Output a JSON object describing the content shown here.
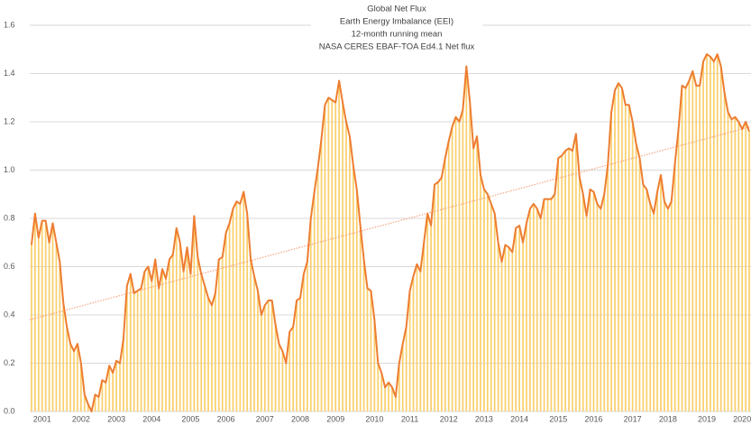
{
  "chart_data": {
    "type": "line",
    "title": [
      "Global Net Flux",
      "Earth Energy Imbalance (EEI)",
      "12-month running mean",
      "NASA CERES EBAF-TOA Ed4.1 Net flux"
    ],
    "categories": [
      null,
      null,
      null,
      "2001",
      null,
      null,
      null,
      null,
      null,
      null,
      null,
      null,
      null,
      null,
      "2002",
      null,
      null,
      null,
      null,
      null,
      null,
      null,
      null,
      null,
      "2003",
      null,
      null,
      null,
      null,
      null,
      null,
      null,
      null,
      null,
      "2004",
      null,
      null,
      null,
      null,
      null,
      null,
      null,
      null,
      null,
      null,
      "2005",
      null,
      null,
      null,
      null,
      null,
      null,
      null,
      null,
      null,
      "2006",
      null,
      null,
      null,
      null,
      null,
      null,
      null,
      null,
      null,
      null,
      "2007",
      null,
      null,
      null,
      null,
      null,
      null,
      null,
      null,
      null,
      "2008",
      null,
      null,
      null,
      null,
      null,
      null,
      null,
      null,
      null,
      "2009",
      null,
      null,
      null,
      null,
      null,
      null,
      null,
      null,
      null,
      null,
      "2010",
      null,
      null,
      null,
      null,
      null,
      null,
      null,
      null,
      null,
      "2011",
      null,
      null,
      null,
      null,
      null,
      null,
      null,
      null,
      null,
      null,
      "2012",
      null,
      null,
      null,
      null,
      null,
      null,
      null,
      null,
      null,
      "2013",
      null,
      null,
      null,
      null,
      null,
      null,
      null,
      null,
      null,
      "2014",
      null,
      null,
      null,
      null,
      null,
      null,
      null,
      null,
      null,
      null,
      "2015",
      null,
      null,
      null,
      null,
      null,
      null,
      null,
      null,
      null,
      "2016",
      null,
      null,
      null,
      null,
      null,
      null,
      null,
      null,
      null,
      null,
      "2017",
      null,
      null,
      null,
      null,
      null,
      null,
      null,
      null,
      null,
      "2018",
      null,
      null,
      null,
      null,
      null,
      null,
      null,
      null,
      null,
      null,
      "2019",
      null,
      null,
      null,
      null,
      null,
      null,
      null,
      null,
      null,
      "2020",
      null,
      null
    ],
    "values": [
      0.69,
      0.82,
      0.72,
      0.79,
      0.79,
      0.7,
      0.78,
      0.7,
      0.62,
      0.45,
      0.35,
      0.28,
      0.25,
      0.28,
      0.2,
      0.07,
      0.03,
      0.0,
      0.07,
      0.06,
      0.13,
      0.12,
      0.19,
      0.16,
      0.21,
      0.2,
      0.3,
      0.52,
      0.57,
      0.49,
      0.5,
      0.51,
      0.58,
      0.6,
      0.54,
      0.63,
      0.51,
      0.59,
      0.55,
      0.63,
      0.65,
      0.76,
      0.7,
      0.58,
      0.68,
      0.57,
      0.81,
      0.64,
      0.57,
      0.52,
      0.47,
      0.44,
      0.49,
      0.63,
      0.64,
      0.74,
      0.78,
      0.84,
      0.87,
      0.86,
      0.91,
      0.82,
      0.63,
      0.56,
      0.5,
      0.4,
      0.44,
      0.46,
      0.46,
      0.36,
      0.28,
      0.25,
      0.2,
      0.33,
      0.35,
      0.46,
      0.47,
      0.57,
      0.62,
      0.8,
      0.91,
      1.01,
      1.13,
      1.27,
      1.3,
      1.29,
      1.28,
      1.37,
      1.28,
      1.2,
      1.14,
      1.02,
      0.92,
      0.77,
      0.63,
      0.51,
      0.5,
      0.38,
      0.2,
      0.16,
      0.1,
      0.12,
      0.1,
      0.06,
      0.2,
      0.28,
      0.35,
      0.5,
      0.56,
      0.61,
      0.58,
      0.7,
      0.82,
      0.77,
      0.94,
      0.95,
      0.97,
      1.05,
      1.12,
      1.18,
      1.22,
      1.2,
      1.25,
      1.43,
      1.28,
      1.09,
      1.14,
      0.98,
      0.92,
      0.9,
      0.86,
      0.82,
      0.7,
      0.62,
      0.69,
      0.68,
      0.66,
      0.76,
      0.77,
      0.7,
      0.78,
      0.84,
      0.86,
      0.84,
      0.8,
      0.88,
      0.88,
      0.88,
      0.9,
      1.05,
      1.06,
      1.08,
      1.09,
      1.08,
      1.15,
      0.97,
      0.9,
      0.81,
      0.92,
      0.91,
      0.86,
      0.84,
      0.9,
      1.02,
      1.24,
      1.33,
      1.36,
      1.34,
      1.27,
      1.27,
      1.2,
      1.11,
      1.05,
      0.94,
      0.92,
      0.86,
      0.82,
      0.91,
      0.98,
      0.87,
      0.84,
      0.87,
      1.03,
      1.17,
      1.35,
      1.34,
      1.37,
      1.41,
      1.35,
      1.35,
      1.45,
      1.48,
      1.47,
      1.45,
      1.48,
      1.43,
      1.32,
      1.24,
      1.21,
      1.22,
      1.2,
      1.17,
      1.2,
      1.16
    ],
    "color": "#ed7d31",
    "bar_color": "#fbcf6a",
    "trendline": {
      "start": 0.38,
      "end": 1.18,
      "color": "#f4a582"
    },
    "ylim": [
      0,
      1.6
    ],
    "yticks": [
      {
        "value": 0,
        "label": "0.0"
      },
      0.2,
      0.4,
      0.6,
      0.8,
      {
        "value": 1,
        "label": "1.0"
      },
      1.2,
      1.4,
      1.6
    ],
    "grid": true
  }
}
